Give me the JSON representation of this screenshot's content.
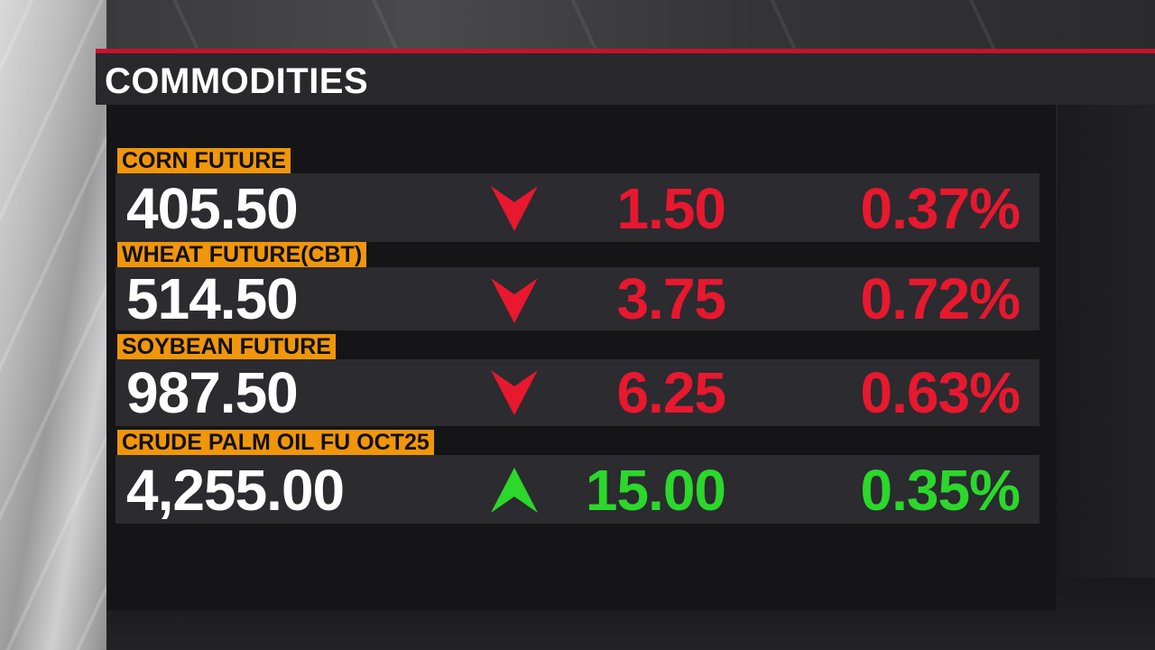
{
  "header": {
    "title": "COMMODITIES",
    "accent_color": "#c8102e"
  },
  "colors": {
    "label_background": "#f0960a",
    "down": "#e8182e",
    "up": "#2bd82b"
  },
  "rows": [
    {
      "label": "CORN FUTURE",
      "price": "405.50",
      "direction": "down",
      "arrow_icon": "down-arrow-icon",
      "change": "1.50",
      "percent": "0.37%"
    },
    {
      "label": "WHEAT FUTURE(CBT)",
      "price": "514.50",
      "direction": "down",
      "arrow_icon": "down-arrow-icon",
      "change": "3.75",
      "percent": "0.72%"
    },
    {
      "label": "SOYBEAN FUTURE",
      "price": "987.50",
      "direction": "down",
      "arrow_icon": "down-arrow-icon",
      "change": "6.25",
      "percent": "0.63%"
    },
    {
      "label": "CRUDE PALM OIL FU OCT25",
      "price": "4,255.00",
      "direction": "up",
      "arrow_icon": "up-arrow-icon",
      "change": "15.00",
      "percent": "0.35%"
    }
  ]
}
